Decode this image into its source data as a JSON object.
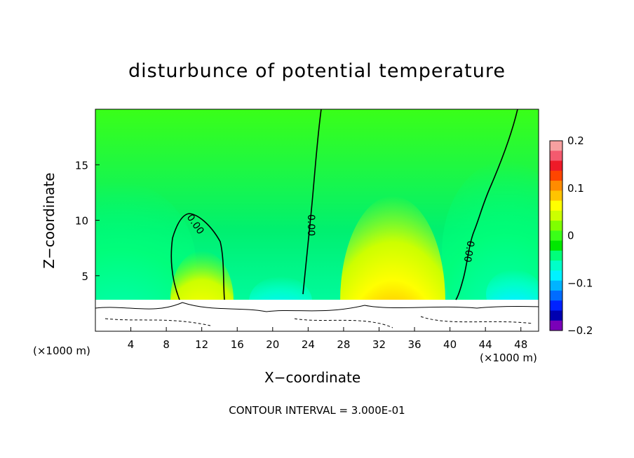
{
  "chart_data": {
    "type": "heatmap",
    "title": "disturbunce of potential temperature",
    "xlabel": "X−coordinate",
    "ylabel": "Z−coordinate",
    "x_unit": "(×1000 m)",
    "y_unit": "",
    "footer": "CONTOUR INTERVAL = 3.000E-01",
    "xlim": [
      0,
      50
    ],
    "ylim": [
      0,
      20
    ],
    "x_ticks": [
      4,
      8,
      12,
      16,
      20,
      24,
      28,
      32,
      36,
      40,
      44,
      48
    ],
    "y_ticks": [
      5,
      10,
      15
    ],
    "colorbar": {
      "range": [
        -0.2,
        0.2
      ],
      "tick_values": [
        0.2,
        0.1,
        0,
        -0.1,
        -0.2
      ],
      "tick_labels": [
        "0.2",
        "0.1",
        "0",
        "−0.1",
        "−0.2"
      ],
      "colors": [
        "#f7a0a0",
        "#f45a6e",
        "#ee1a28",
        "#ff4500",
        "#ff8c00",
        "#ffc400",
        "#ffff00",
        "#ccff00",
        "#7fff00",
        "#3aff18",
        "#00e800",
        "#00ff7a",
        "#00ffc8",
        "#00f2ff",
        "#00b4ff",
        "#006cff",
        "#0022ff",
        "#0000b0",
        "#7a00b8"
      ]
    },
    "contour_labels": [
      "0.00",
      "0.00",
      "0.00"
    ],
    "contour_interval": 0.3,
    "features": [
      {
        "name": "warm anomaly",
        "x": 33.5,
        "z": 3.5,
        "value": 0.16
      },
      {
        "name": "warm anomaly",
        "x": 12,
        "z": 3.7,
        "value": 0.07
      },
      {
        "name": "cool anomaly",
        "x": 47,
        "z": 4.5,
        "value": -0.06
      },
      {
        "name": "cool anomaly",
        "x": 20,
        "z": 3.5,
        "value": -0.09
      }
    ]
  }
}
